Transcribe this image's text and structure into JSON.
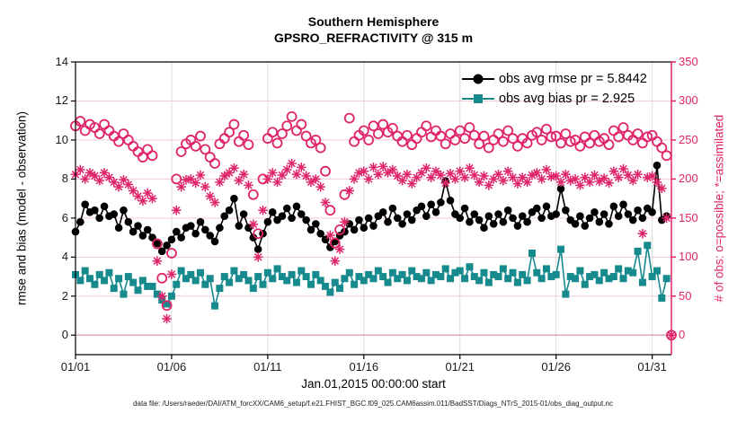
{
  "figure": {
    "title_line1": "Southern Hemisphere",
    "title_line2": "GPSRO_REFRACTIVITY @ 315 m",
    "footer": "data file: /Users/raeder/DAI/ATM_forcXX/CAM6_setup/f.e21.FHIST_BGC.f09_025.CAM6assim.011/BadSST/Diags_NTrS_2015-01/obs_diag_output.nc"
  },
  "legend": {
    "items": [
      {
        "label": "obs avg rmse pr = 5.8442",
        "marker": "filled-circle",
        "color": "#000000"
      },
      {
        "label": "obs avg bias pr = 2.925",
        "marker": "filled-square",
        "color": "#178a8d"
      }
    ]
  },
  "axes": {
    "x": {
      "label": "Jan.01,2015 00:00:00 start",
      "ticks": [
        {
          "day": 0,
          "label": "01/01"
        },
        {
          "day": 5,
          "label": "01/06"
        },
        {
          "day": 10,
          "label": "01/11"
        },
        {
          "day": 15,
          "label": "01/16"
        },
        {
          "day": 20,
          "label": "01/21"
        },
        {
          "day": 25,
          "label": "01/26"
        },
        {
          "day": 30,
          "label": "01/31"
        }
      ]
    },
    "y_left": {
      "label": "rmse and bias (model - observation)",
      "ticks": [
        0,
        2,
        4,
        6,
        8,
        10,
        12,
        14
      ],
      "range": [
        -1,
        14
      ]
    },
    "y_right": {
      "label": "# of obs: o=possible; *=assimilated",
      "ticks": [
        0,
        50,
        100,
        150,
        200,
        250,
        300,
        350
      ],
      "range": [
        -25,
        350
      ]
    }
  },
  "colors": {
    "magenta": "#e0246a",
    "teal": "#178a8d",
    "black": "#000000",
    "grid_horizontal": "#f3cbd9",
    "grid_vertical": "#dcdcdc",
    "zero_line": "#d9aab6"
  },
  "chart_data": {
    "type": "line",
    "title": "Southern Hemisphere — GPSRO_REFRACTIVITY @ 315 m",
    "xlabel": "Jan.01,2015 00:00:00 start",
    "x_start_label": "01/01",
    "x_step_days": 0.25,
    "x_range_days": [
      0,
      31
    ],
    "ylim_left": [
      -1,
      14
    ],
    "ylim_right": [
      -25,
      350
    ],
    "grid": true,
    "legend_position": "top-right",
    "series": [
      {
        "name": "obs avg rmse pr = 5.8442",
        "axis": "left",
        "marker": "filled-circle",
        "line": true,
        "color": "#000000",
        "values": [
          5.3,
          5.8,
          6.7,
          6.3,
          6.4,
          6.0,
          6.6,
          6.1,
          6.2,
          5.5,
          6.4,
          5.8,
          5.3,
          5.6,
          5.1,
          5.4,
          5.0,
          4.7,
          4.3,
          4.6,
          4.9,
          5.3,
          5.0,
          5.5,
          5.6,
          5.2,
          5.8,
          5.4,
          5.1,
          4.8,
          5.5,
          6.1,
          6.4,
          7.0,
          5.6,
          6.2,
          5.5,
          5.0,
          4.4,
          5.2,
          5.8,
          6.3,
          5.9,
          6.1,
          6.5,
          6.0,
          6.6,
          6.2,
          5.9,
          5.4,
          5.7,
          5.2,
          4.9,
          4.5,
          4.8,
          5.1,
          5.3,
          5.7,
          5.4,
          5.9,
          5.5,
          6.0,
          5.6,
          6.1,
          6.3,
          5.8,
          6.5,
          6.0,
          5.7,
          6.2,
          5.9,
          6.4,
          6.6,
          6.1,
          6.7,
          6.3,
          6.8,
          7.9,
          6.9,
          6.2,
          6.0,
          6.5,
          5.8,
          6.2,
          5.9,
          5.5,
          6.1,
          5.7,
          6.2,
          5.8,
          6.4,
          6.0,
          5.6,
          6.1,
          5.8,
          6.3,
          6.5,
          6.0,
          6.6,
          6.1,
          6.2,
          7.5,
          6.4,
          5.9,
          5.7,
          6.1,
          5.6,
          6.0,
          6.3,
          5.8,
          6.2,
          5.7,
          6.6,
          6.1,
          6.7,
          6.2,
          5.9,
          6.4,
          6.0,
          6.5,
          6.3,
          8.7,
          5.9,
          6.1,
          null
        ]
      },
      {
        "name": "obs avg bias pr = 2.925",
        "axis": "left",
        "marker": "filled-square",
        "line": true,
        "color": "#178a8d",
        "values": [
          3.1,
          2.8,
          3.3,
          2.9,
          2.6,
          3.1,
          2.8,
          3.2,
          2.4,
          2.9,
          2.1,
          3.0,
          2.7,
          2.3,
          2.8,
          2.5,
          2.5,
          2.1,
          1.8,
          1.6,
          2.0,
          2.6,
          3.3,
          2.9,
          3.1,
          2.8,
          3.2,
          2.6,
          2.9,
          1.5,
          2.4,
          3.0,
          2.7,
          3.3,
          2.9,
          3.1,
          2.8,
          2.4,
          3.0,
          2.6,
          3.2,
          2.9,
          3.4,
          3.0,
          2.8,
          3.1,
          2.7,
          3.3,
          3.0,
          2.6,
          3.1,
          2.8,
          2.5,
          2.2,
          2.7,
          2.4,
          2.9,
          3.2,
          2.6,
          3.0,
          2.8,
          3.1,
          2.9,
          3.3,
          3.0,
          2.7,
          3.2,
          2.9,
          3.1,
          2.8,
          3.3,
          3.0,
          2.9,
          3.2,
          2.8,
          3.1,
          3.0,
          3.4,
          2.9,
          3.2,
          3.3,
          2.9,
          3.5,
          3.0,
          2.8,
          3.2,
          2.7,
          3.1,
          3.0,
          3.4,
          2.9,
          3.2,
          2.7,
          3.1,
          2.8,
          4.2,
          3.2,
          2.9,
          3.4,
          3.0,
          3.1,
          4.4,
          2.1,
          3.0,
          2.9,
          3.3,
          2.6,
          3.0,
          3.1,
          2.8,
          3.2,
          2.9,
          3.0,
          3.4,
          2.9,
          3.3,
          3.2,
          4.3,
          2.7,
          4.6,
          3.0,
          3.3,
          1.9,
          2.9,
          null
        ]
      },
      {
        "name": "# of obs possible",
        "axis": "right",
        "marker": "open-circle",
        "line": false,
        "color": "#e0246a",
        "values": [
          268,
          274,
          262,
          270,
          266,
          258,
          270,
          262,
          255,
          248,
          258,
          250,
          242,
          235,
          228,
          238,
          230,
          117,
          73,
          38,
          105,
          200,
          235,
          245,
          250,
          242,
          255,
          238,
          228,
          220,
          245,
          252,
          260,
          270,
          248,
          256,
          244,
          180,
          130,
          200,
          252,
          260,
          246,
          258,
          268,
          280,
          262,
          270,
          255,
          246,
          250,
          240,
          210,
          160,
          118,
          135,
          180,
          278,
          248,
          256,
          262,
          250,
          268,
          258,
          270,
          260,
          265,
          255,
          248,
          256,
          244,
          252,
          260,
          268,
          254,
          262,
          255,
          245,
          258,
          250,
          262,
          252,
          266,
          256,
          245,
          255,
          240,
          250,
          258,
          248,
          262,
          252,
          242,
          252,
          246,
          256,
          260,
          250,
          264,
          254,
          255,
          246,
          258,
          248,
          250,
          242,
          254,
          246,
          256,
          248,
          252,
          244,
          262,
          254,
          266,
          256,
          250,
          258,
          246,
          254,
          256,
          248,
          240,
          230,
          0
        ]
      },
      {
        "name": "# of obs assimilated",
        "axis": "right",
        "marker": "asterisk",
        "line": false,
        "color": "#e0246a",
        "values": [
          206,
          212,
          200,
          208,
          204,
          198,
          208,
          202,
          196,
          190,
          199,
          193,
          185,
          178,
          172,
          182,
          175,
          95,
          50,
          21,
          78,
          160,
          190,
          199,
          200,
          195,
          205,
          190,
          178,
          170,
          196,
          204,
          208,
          214,
          198,
          206,
          192,
          142,
          100,
          160,
          200,
          208,
          196,
          205,
          212,
          220,
          206,
          215,
          204,
          196,
          200,
          190,
          170,
          128,
          95,
          110,
          145,
          185,
          200,
          208,
          210,
          200,
          215,
          206,
          216,
          208,
          212,
          204,
          198,
          206,
          194,
          202,
          208,
          214,
          202,
          210,
          205,
          195,
          207,
          200,
          210,
          202,
          214,
          205,
          196,
          204,
          192,
          200,
          206,
          198,
          210,
          202,
          194,
          202,
          196,
          205,
          208,
          200,
          212,
          203,
          204,
          196,
          206,
          198,
          200,
          192,
          202,
          196,
          205,
          197,
          201,
          195,
          210,
          202,
          213,
          205,
          198,
          206,
          130,
          202,
          204,
          196,
          188,
          150,
          0
        ]
      }
    ]
  }
}
